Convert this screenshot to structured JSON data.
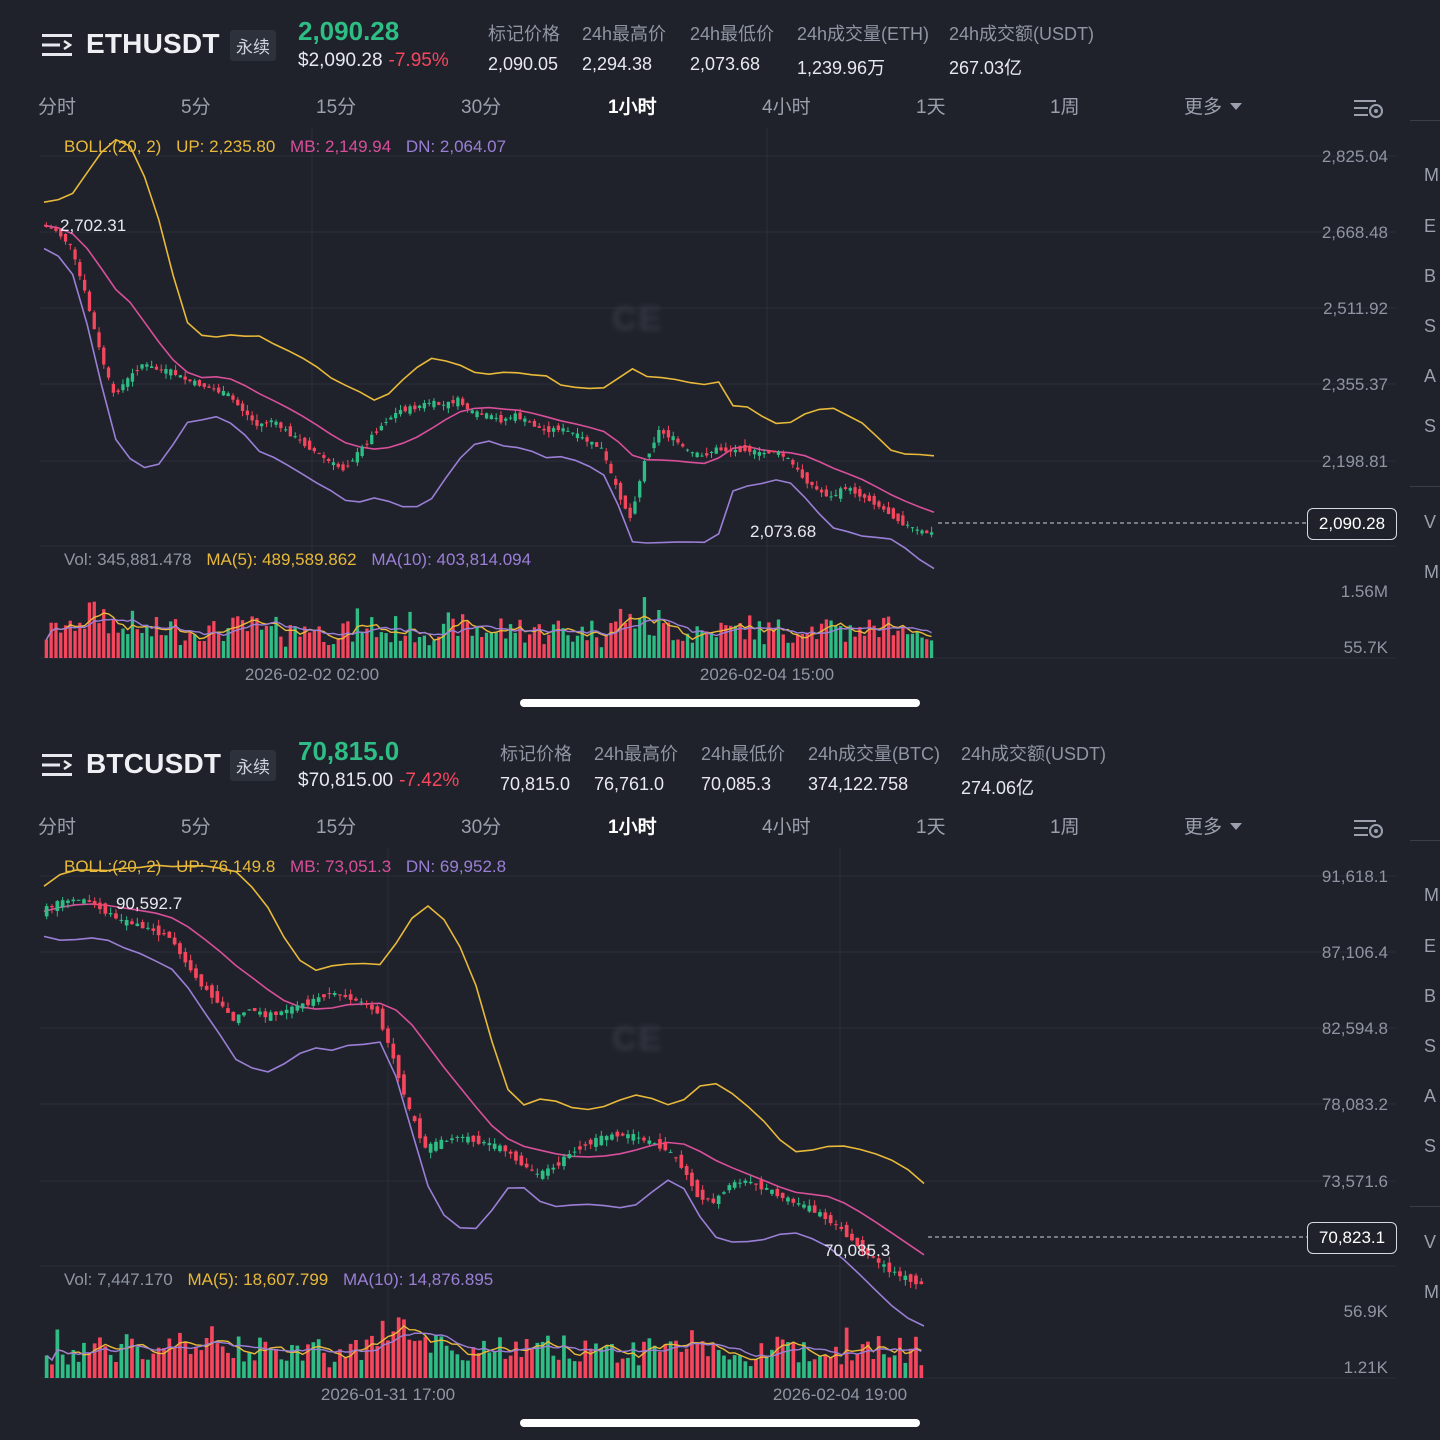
{
  "panels": [
    {
      "symbol": "ETHUSDT",
      "tag": "永续",
      "last_price": "2,090.28",
      "usd_price": "$2,090.28",
      "change": "-7.95%",
      "stats": [
        {
          "label": "标记价格",
          "value": "2,090.05"
        },
        {
          "label": "24h最高价",
          "value": "2,294.38"
        },
        {
          "label": "24h最低价",
          "value": "2,073.68"
        },
        {
          "label": "24h成交量(ETH)",
          "value": "1,239.96万"
        },
        {
          "label": "24h成交额(USDT)",
          "value": "267.03亿"
        }
      ],
      "tabs": [
        "分时",
        "5分",
        "15分",
        "30分",
        "1小时",
        "4小时",
        "1天",
        "1周",
        "更多"
      ],
      "active_tab": "1小时",
      "boll_label": "BOLL:(20, 2)",
      "boll_up": "UP: 2,235.80",
      "boll_mb": "MB: 2,149.94",
      "boll_dn": "DN: 2,064.07",
      "price_axis": [
        "2,825.04",
        "2,668.48",
        "2,511.92",
        "2,355.37",
        "2,198.81"
      ],
      "current_price_tag": "2,090.28",
      "high_annotation": "2,702.31",
      "low_annotation": "2,073.68",
      "vol_label": "Vol: 345,881.478",
      "vol_ma5": "MA(5): 489,589.862",
      "vol_ma10": "MA(10): 403,814.094",
      "vol_axis": [
        "1.56M",
        "55.7K"
      ],
      "time_labels": [
        "2026-02-02 02:00",
        "2026-02-04 15:00"
      ],
      "watermark": "CE"
    },
    {
      "symbol": "BTCUSDT",
      "tag": "永续",
      "last_price": "70,815.0",
      "usd_price": "$70,815.00",
      "change": "-7.42%",
      "stats": [
        {
          "label": "标记价格",
          "value": "70,815.0"
        },
        {
          "label": "24h最高价",
          "value": "76,761.0"
        },
        {
          "label": "24h最低价",
          "value": "70,085.3"
        },
        {
          "label": "24h成交量(BTC)",
          "value": "374,122.758"
        },
        {
          "label": "24h成交额(USDT)",
          "value": "274.06亿"
        }
      ],
      "tabs": [
        "分时",
        "5分",
        "15分",
        "30分",
        "1小时",
        "4小时",
        "1天",
        "1周",
        "更多"
      ],
      "active_tab": "1小时",
      "boll_label": "BOLL:(20, 2)",
      "boll_up": "UP: 76,149.8",
      "boll_mb": "MB: 73,051.3",
      "boll_dn": "DN: 69,952.8",
      "price_axis": [
        "91,618.1",
        "87,106.4",
        "82,594.8",
        "78,083.2",
        "73,571.6"
      ],
      "current_price_tag": "70,823.1",
      "high_annotation": "90,592.7",
      "low_annotation": "70,085.3",
      "vol_label": "Vol: 7,447.170",
      "vol_ma5": "MA(5): 18,607.799",
      "vol_ma10": "MA(10): 14,876.895",
      "vol_axis": [
        "56.9K",
        "1.21K"
      ],
      "time_labels": [
        "2026-01-31 17:00",
        "2026-02-04 19:00"
      ],
      "watermark": "CE"
    }
  ],
  "side_letters": [
    "M",
    "E",
    "B",
    "S",
    "A",
    "S",
    "V",
    "M"
  ],
  "colors": {
    "up": "#2ebd85",
    "down": "#f6465d",
    "boll_up": "#e8b93a",
    "boll_mb": "#d84f9a",
    "boll_dn": "#9b7fd6",
    "bg": "#1f222b"
  },
  "chart_data": [
    {
      "type": "candlestick",
      "title": "ETHUSDT",
      "interval": "1小时",
      "ylim": [
        2073.68,
        2825.04
      ],
      "close_path": [
        2690,
        2680,
        2650,
        2560,
        2450,
        2360,
        2390,
        2420,
        2410,
        2405,
        2390,
        2380,
        2370,
        2360,
        2330,
        2300,
        2310,
        2290,
        2270,
        2250,
        2230,
        2215,
        2245,
        2280,
        2310,
        2330,
        2335,
        2345,
        2340,
        2350,
        2325,
        2320,
        2310,
        2320,
        2305,
        2290,
        2295,
        2285,
        2270,
        2255,
        2180,
        2120,
        2230,
        2290,
        2275,
        2250,
        2240,
        2255,
        2250,
        2255,
        2245,
        2250,
        2235,
        2200,
        2175,
        2160,
        2180,
        2165,
        2150,
        2130,
        2110,
        2095,
        2090
      ],
      "boll": {
        "up": "UP: 2,235.80",
        "mb": "MB: 2,149.94",
        "dn": "DN: 2,064.07"
      },
      "volume_axis": [
        "1.56M",
        "55.7K"
      ],
      "x_ticks": [
        "2026-02-02 02:00",
        "2026-02-04 15:00"
      ]
    },
    {
      "type": "candlestick",
      "title": "BTCUSDT",
      "interval": "1小时",
      "ylim": [
        70085.3,
        91618.1
      ],
      "close_path": [
        89800,
        90200,
        90400,
        90300,
        89800,
        89300,
        89100,
        88800,
        88500,
        87200,
        86000,
        85200,
        84200,
        84800,
        84400,
        84600,
        84900,
        85200,
        85600,
        85400,
        85100,
        84600,
        82200,
        79500,
        77600,
        77900,
        78200,
        78000,
        77800,
        77500,
        76800,
        76200,
        76600,
        77300,
        77800,
        78100,
        78300,
        78200,
        77900,
        77600,
        76700,
        75200,
        74800,
        75700,
        75900,
        75600,
        75200,
        74800,
        74500,
        74000,
        73400,
        72600,
        71900,
        71300,
        70900,
        70600
      ],
      "boll": {
        "up": "UP: 76,149.8",
        "mb": "MB: 73,051.3",
        "dn": "DN: 69,952.8"
      },
      "volume_axis": [
        "56.9K",
        "1.21K"
      ],
      "x_ticks": [
        "2026-01-31 17:00",
        "2026-02-04 19:00"
      ]
    }
  ]
}
